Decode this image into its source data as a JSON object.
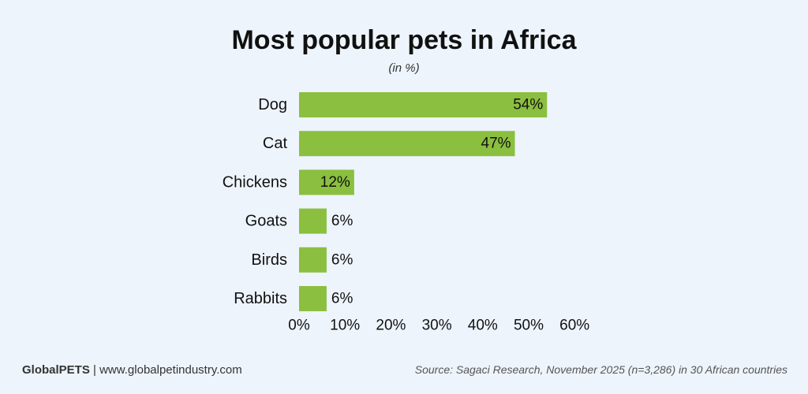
{
  "chart_data": {
    "type": "bar",
    "orientation": "horizontal",
    "title": "Most popular pets in Africa",
    "subtitle": "(in %)",
    "categories": [
      "Dog",
      "Cat",
      "Chickens",
      "Goats",
      "Birds",
      "Rabbits"
    ],
    "values": [
      54,
      47,
      12,
      6,
      6,
      6
    ],
    "data_labels": [
      "54%",
      "47%",
      "12%",
      "6%",
      "6%",
      "6%"
    ],
    "xlim": [
      0,
      60
    ],
    "xticks": [
      "0%",
      "10%",
      "20%",
      "30%",
      "40%",
      "50%",
      "60%"
    ],
    "grid": false,
    "bar_color": "#8bbf3f"
  },
  "footer": {
    "brand": "GlobalPETS",
    "separator": " | ",
    "website": "www.globalpetindustry.com",
    "source": "Source: Sagaci Research, November 2025 (n=3,286) in 30 African countries"
  }
}
